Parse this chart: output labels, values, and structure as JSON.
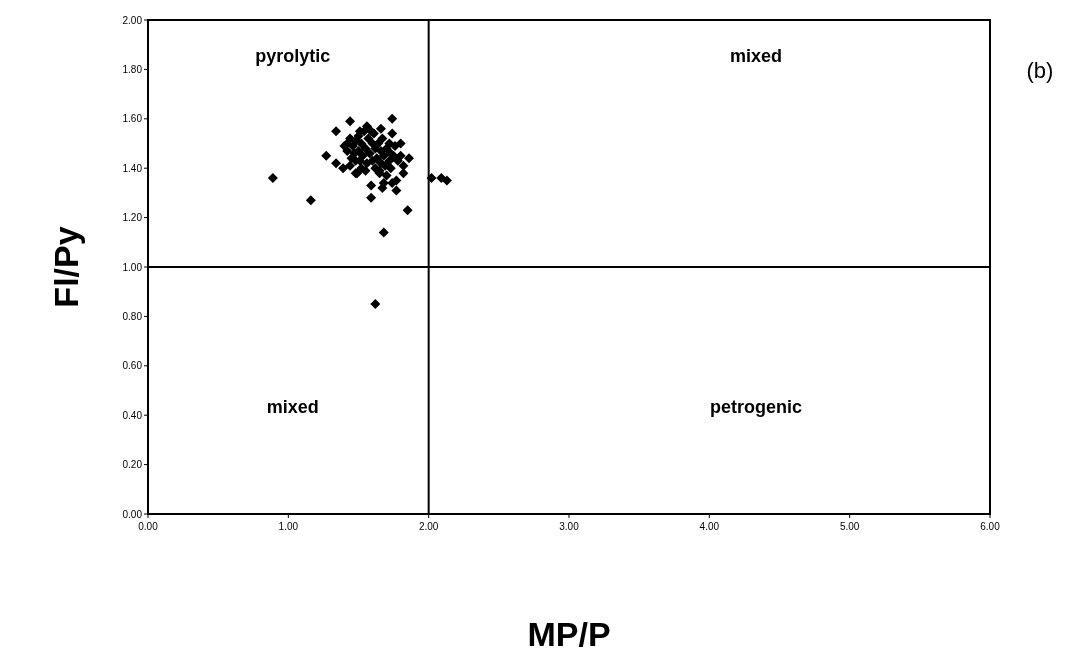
{
  "chart_data": {
    "type": "scatter",
    "xlabel": "MP/P",
    "ylabel": "Fl/Py",
    "xlim": [
      0,
      6
    ],
    "ylim": [
      0,
      2
    ],
    "xticks": [
      {
        "value": 0,
        "label": "0.00"
      },
      {
        "value": 1,
        "label": "1.00"
      },
      {
        "value": 2,
        "label": "2.00"
      },
      {
        "value": 3,
        "label": "3.00"
      },
      {
        "value": 4,
        "label": "4.00"
      },
      {
        "value": 5,
        "label": "5.00"
      },
      {
        "value": 6,
        "label": "6.00"
      }
    ],
    "yticks": [
      {
        "value": 0,
        "label": "0.00"
      },
      {
        "value": 0.2,
        "label": "0.20"
      },
      {
        "value": 0.4,
        "label": "0.40"
      },
      {
        "value": 0.6,
        "label": "0.60"
      },
      {
        "value": 0.8,
        "label": "0.80"
      },
      {
        "value": 1,
        "label": "1.00"
      },
      {
        "value": 1.2,
        "label": "1.20"
      },
      {
        "value": 1.4,
        "label": "1.40"
      },
      {
        "value": 1.6,
        "label": "1.60"
      },
      {
        "value": 1.8,
        "label": "1.80"
      },
      {
        "value": 2,
        "label": "2.00"
      }
    ],
    "grid": false,
    "marker": "diamond",
    "series": [
      {
        "color": "#000000",
        "x": [
          0.89,
          1.16,
          2.02,
          2.09,
          2.13,
          1.85,
          1.68,
          1.62,
          1.59,
          1.74,
          1.44,
          1.34,
          1.27,
          1.34,
          1.39,
          1.56,
          1.66,
          1.61,
          1.74,
          1.8,
          1.86,
          1.82,
          1.82,
          1.77,
          1.77,
          1.74,
          1.67,
          1.59,
          1.68,
          1.48,
          1.52,
          1.65,
          1.73,
          1.42,
          1.44,
          1.46,
          1.48,
          1.5,
          1.47,
          1.5,
          1.52,
          1.45,
          1.48,
          1.53,
          1.55,
          1.42,
          1.4,
          1.51,
          1.54,
          1.57,
          1.6,
          1.62,
          1.64,
          1.66,
          1.68,
          1.7,
          1.72,
          1.63,
          1.66,
          1.69,
          1.72,
          1.75,
          1.78,
          1.6,
          1.58,
          1.56,
          1.62,
          1.65,
          1.7,
          1.76,
          1.67,
          1.59,
          1.44,
          1.51,
          1.55,
          1.8,
          1.73,
          1.49
        ],
        "values": [
          1.36,
          1.27,
          1.36,
          1.36,
          1.35,
          1.23,
          1.14,
          0.85,
          1.28,
          1.6,
          1.59,
          1.55,
          1.45,
          1.42,
          1.4,
          1.57,
          1.56,
          1.54,
          1.54,
          1.5,
          1.44,
          1.41,
          1.38,
          1.35,
          1.31,
          1.34,
          1.32,
          1.33,
          1.34,
          1.38,
          1.4,
          1.39,
          1.4,
          1.5,
          1.52,
          1.49,
          1.51,
          1.53,
          1.46,
          1.47,
          1.5,
          1.44,
          1.43,
          1.45,
          1.48,
          1.47,
          1.49,
          1.55,
          1.55,
          1.52,
          1.5,
          1.48,
          1.5,
          1.47,
          1.45,
          1.48,
          1.5,
          1.44,
          1.42,
          1.41,
          1.43,
          1.45,
          1.43,
          1.43,
          1.46,
          1.42,
          1.4,
          1.38,
          1.37,
          1.49,
          1.52,
          1.55,
          1.41,
          1.43,
          1.39,
          1.45,
          1.46,
          1.38
        ]
      }
    ],
    "ref_lines": [
      {
        "axis": "x",
        "value": 2,
        "color": "#000000"
      },
      {
        "axis": "y",
        "value": 1,
        "color": "#000000"
      }
    ],
    "annotations": [
      "pyrolytic",
      "mixed",
      "mixed",
      "petrogenic",
      "(b)"
    ]
  }
}
